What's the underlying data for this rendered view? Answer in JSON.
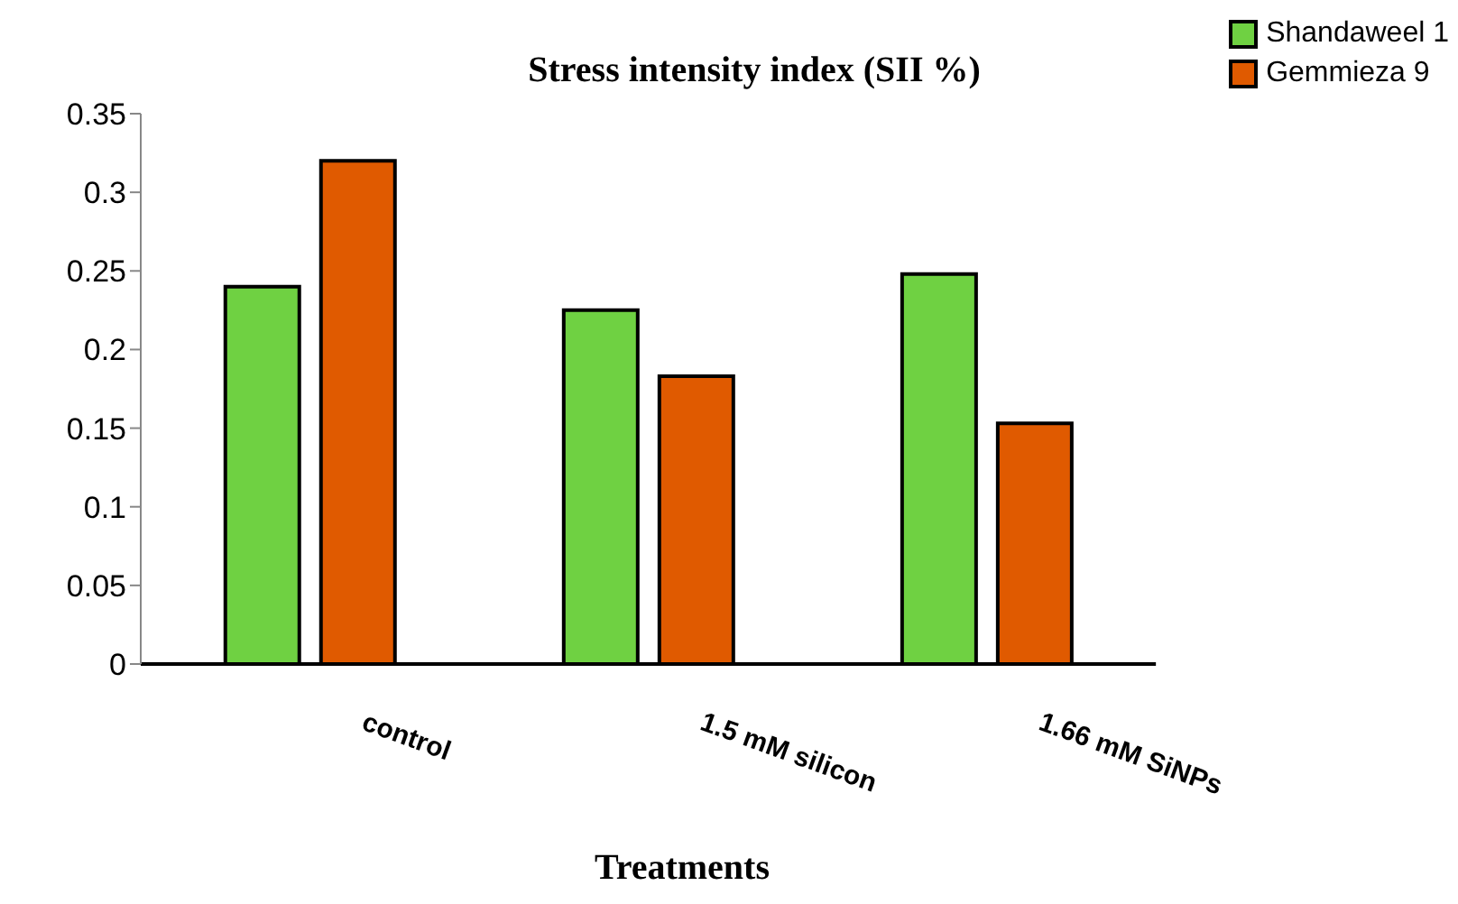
{
  "chart_data": {
    "type": "bar",
    "title": "Stress intensity index (SII %)",
    "xlabel": "Treatments",
    "categories": [
      "control",
      "1.5 mM silicon",
      "1.66 mM SiNPs"
    ],
    "series": [
      {
        "name": "Shandaweel 1",
        "color": "#6fd142",
        "values": [
          0.24,
          0.225,
          0.248
        ]
      },
      {
        "name": "Gemmieza 9",
        "color": "#e05a00",
        "values": [
          0.32,
          0.183,
          0.153
        ]
      }
    ],
    "ylim": [
      0,
      0.35
    ],
    "yticks": [
      0,
      0.05,
      0.1,
      0.15,
      0.2,
      0.25,
      0.3,
      0.35
    ],
    "grid": false,
    "legend": "top right"
  }
}
